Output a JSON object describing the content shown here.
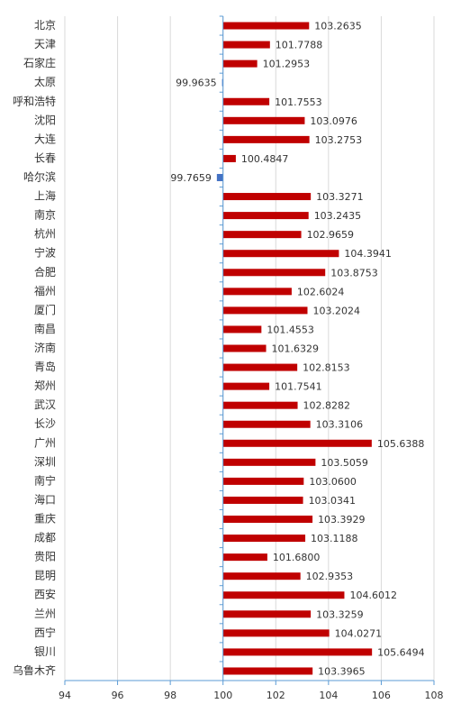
{
  "chart_data": {
    "type": "bar",
    "orientation": "horizontal",
    "baseline": 100,
    "categories": [
      "北京",
      "天津",
      "石家庄",
      "太原",
      "呼和浩特",
      "沈阳",
      "大连",
      "长春",
      "哈尔滨",
      "上海",
      "南京",
      "杭州",
      "宁波",
      "合肥",
      "福州",
      "厦门",
      "南昌",
      "济南",
      "青岛",
      "郑州",
      "武汉",
      "长沙",
      "广州",
      "深圳",
      "南宁",
      "海口",
      "重庆",
      "成都",
      "贵阳",
      "昆明",
      "西安",
      "兰州",
      "西宁",
      "银川",
      "乌鲁木齐"
    ],
    "values": [
      103.2635,
      101.7788,
      101.2953,
      99.9635,
      101.7553,
      103.0976,
      103.2753,
      100.4847,
      99.7659,
      103.3271,
      103.2435,
      102.9659,
      104.3941,
      103.8753,
      102.6024,
      103.2024,
      101.4553,
      101.6329,
      102.8153,
      101.7541,
      102.8282,
      103.3106,
      105.6388,
      103.5059,
      103.06,
      103.0341,
      103.3929,
      103.1188,
      101.68,
      102.9353,
      104.6012,
      103.3259,
      104.0271,
      105.6494,
      103.3965
    ],
    "value_labels": [
      "103.2635",
      "101.7788",
      "101.2953",
      "99.9635",
      "101.7553",
      "103.0976",
      "103.2753",
      "100.4847",
      "99.7659",
      "103.3271",
      "103.2435",
      "102.9659",
      "104.3941",
      "103.8753",
      "102.6024",
      "103.2024",
      "101.4553",
      "101.6329",
      "102.8153",
      "101.7541",
      "102.8282",
      "103.3106",
      "105.6388",
      "103.5059",
      "103.0600",
      "103.0341",
      "103.3929",
      "103.1188",
      "101.6800",
      "102.9353",
      "104.6012",
      "103.3259",
      "104.0271",
      "105.6494",
      "103.3965"
    ],
    "color": "#c00000",
    "negative_color": "#4472c4",
    "xlim": [
      94,
      108
    ],
    "xticks": [
      94,
      96,
      98,
      100,
      102,
      104,
      106,
      108
    ],
    "grid": true
  }
}
